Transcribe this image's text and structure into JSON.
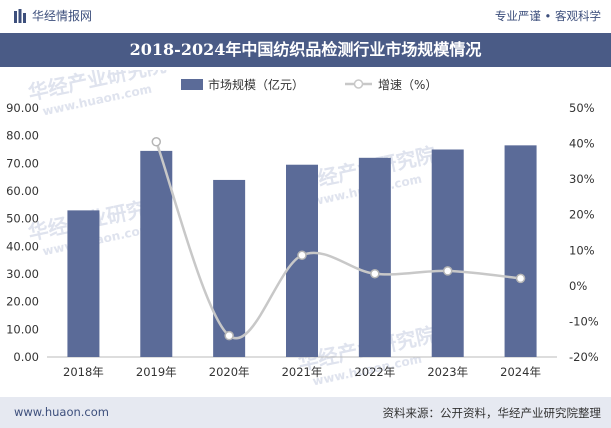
{
  "header": {
    "brand": "华经情报网",
    "slogan": "专业严谨 • 客观科学"
  },
  "title": "2018-2024年中国纺织品检测行业市场规模情况",
  "footer": {
    "url": "www.huaon.com",
    "source": "资料来源：公开资料，华经产业研究院整理"
  },
  "watermark": {
    "name": "华经产业研究院",
    "url": "www.huaon.com"
  },
  "colors": {
    "bar": "#5b6b98",
    "line": "#c8c8c8",
    "title_bg": "#4a5b86",
    "footer_bg": "#e6e9f1"
  },
  "chart_data": {
    "type": "bar",
    "categories": [
      "2018年",
      "2019年",
      "2020年",
      "2021年",
      "2022年",
      "2023年",
      "2024年"
    ],
    "series": [
      {
        "name": "市场规模（亿元）",
        "type": "bar",
        "axis": "left",
        "values": [
          53.0,
          74.5,
          64.0,
          69.5,
          72.0,
          75.0,
          76.5
        ]
      },
      {
        "name": "增速（%）",
        "type": "line",
        "axis": "right",
        "values": [
          null,
          40.5,
          -14.0,
          8.6,
          3.4,
          4.2,
          2.1
        ]
      }
    ],
    "y_left": {
      "min": 0,
      "max": 90,
      "step": 10,
      "tick_labels": [
        "0.00",
        "10.00",
        "20.00",
        "30.00",
        "40.00",
        "50.00",
        "60.00",
        "70.00",
        "80.00",
        "90.00"
      ]
    },
    "y_right": {
      "min": -20,
      "max": 50,
      "step": 10,
      "tick_labels": [
        "-20%",
        "-10%",
        "0%",
        "10%",
        "20%",
        "30%",
        "40%",
        "50%"
      ]
    },
    "legend_position": "top-center",
    "grid": false
  }
}
